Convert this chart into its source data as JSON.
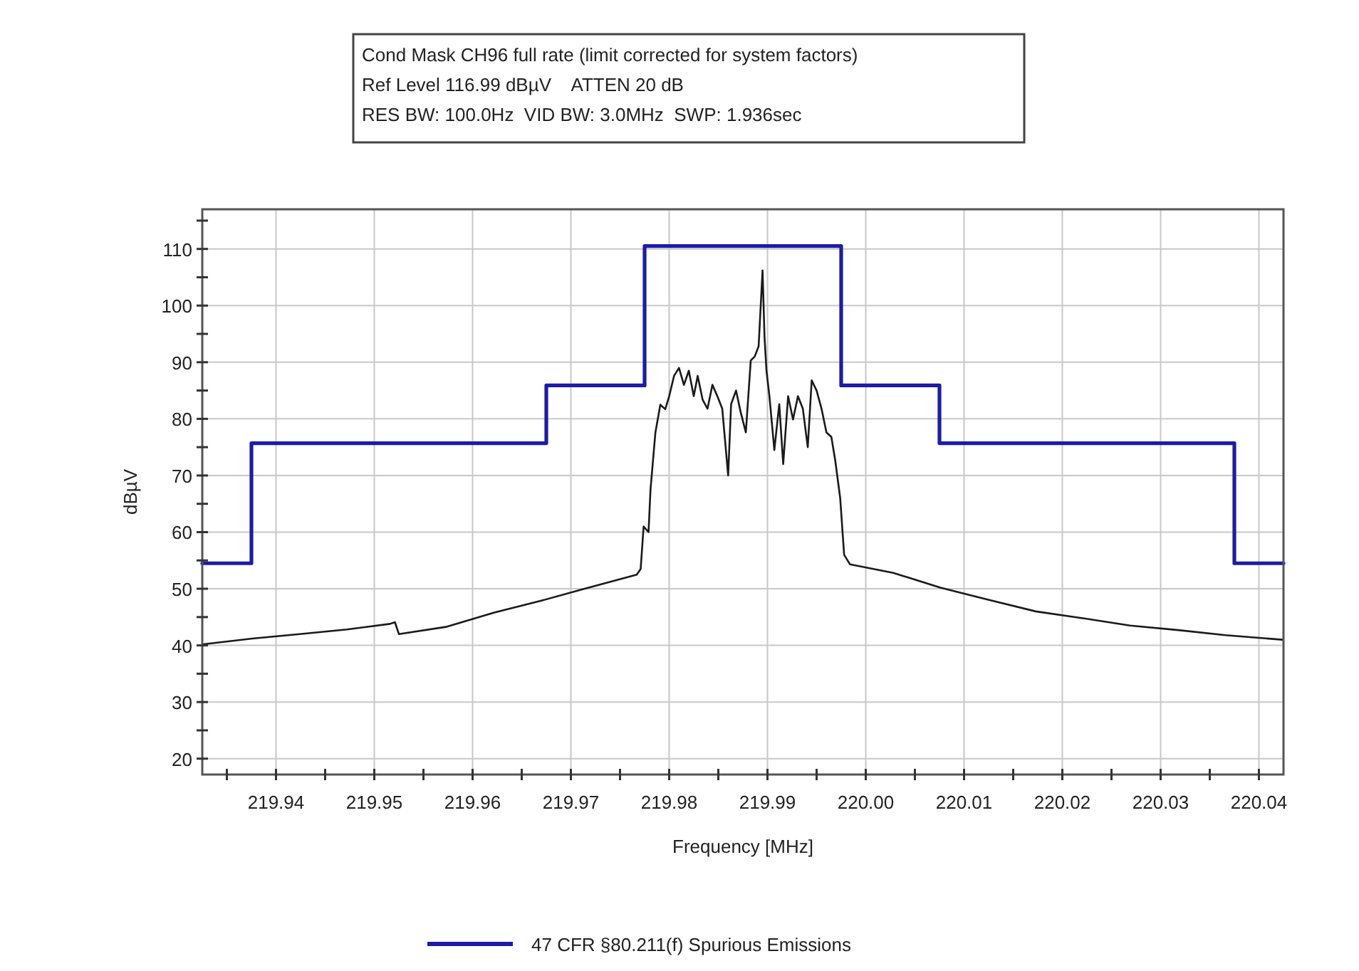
{
  "chart_data": {
    "type": "line",
    "title": "Cond Mask CH96 full rate (limit corrected for system factors)",
    "annotations": [
      "Ref Level 116.99 dBµV    ATTEN 20 dB",
      "RES BW: 100.0Hz  VID BW: 3.0MHz  SWP: 1.936sec"
    ],
    "xlabel": "Frequency [MHz]",
    "ylabel": "dBµV",
    "xlim": [
      219.9325,
      220.0425
    ],
    "xticks": [
      {
        "value": 219.935,
        "label": null
      },
      219.94,
      {
        "value": 219.945,
        "label": null
      },
      219.95,
      {
        "value": 219.955,
        "label": null
      },
      219.96,
      {
        "value": 219.965,
        "label": null
      },
      219.97,
      {
        "value": 219.975,
        "label": null
      },
      219.98,
      {
        "value": 219.985,
        "label": null
      },
      219.99,
      {
        "value": 219.995,
        "label": null
      },
      {
        "value": 220,
        "label": "220.00"
      },
      {
        "value": 220.005,
        "label": null
      },
      220.01,
      {
        "value": 220.015,
        "label": null
      },
      220.02,
      {
        "value": 220.025,
        "label": null
      },
      220.03,
      {
        "value": 220.035,
        "label": null
      },
      220.04
    ],
    "ylim": [
      17.2,
      117
    ],
    "yticks": [
      20,
      {
        "value": 25,
        "label": null
      },
      30,
      {
        "value": 35,
        "label": null
      },
      40,
      {
        "value": 45,
        "label": null
      },
      50,
      {
        "value": 55,
        "label": null
      },
      60,
      {
        "value": 65,
        "label": null
      },
      70,
      {
        "value": 75,
        "label": null
      },
      80,
      {
        "value": 85,
        "label": null
      },
      90,
      {
        "value": 95,
        "label": null
      },
      100,
      {
        "value": 105,
        "label": null
      },
      110,
      {
        "value": 115,
        "label": null
      }
    ],
    "grid": true,
    "legend": "bottom",
    "line_style": "solid",
    "marker": "none",
    "series": [
      {
        "color": "#1a1a1a",
        "x": [
          219.9326,
          219.9376,
          219.9424,
          219.9472,
          219.9516,
          219.9521,
          219.9525,
          219.9574,
          219.9622,
          219.967,
          219.9714,
          219.9767,
          219.9771,
          219.9774,
          219.9779,
          219.9781,
          219.9786,
          219.9791,
          219.9796,
          219.98,
          219.9805,
          219.981,
          219.9815,
          219.982,
          219.9825,
          219.9829,
          219.9834,
          219.9839,
          219.9844,
          219.9849,
          219.9854,
          219.986,
          219.9863,
          219.9868,
          219.9873,
          219.9878,
          219.9883,
          219.9887,
          219.9891,
          219.9895,
          219.9897,
          219.9899,
          219.9902,
          219.9907,
          219.9912,
          219.9916,
          219.9921,
          219.9926,
          219.9931,
          219.9936,
          219.9941,
          219.9945,
          219.995,
          219.9955,
          219.996,
          219.9965,
          219.9969,
          219.9974,
          219.9978,
          219.9984,
          220.0028,
          220.0076,
          220.0124,
          220.0173,
          220.0221,
          220.0269,
          220.0318,
          220.0366,
          220.0424
        ],
        "values": [
          40.2,
          41.2,
          42,
          42.8,
          43.8,
          44.1,
          42,
          43.3,
          45.8,
          47.9,
          50,
          52.5,
          53.5,
          61,
          60,
          67.5,
          77.6,
          82.5,
          81.7,
          84,
          87.6,
          89,
          86,
          88.5,
          84,
          87.6,
          83.4,
          81.8,
          86,
          84,
          81.8,
          70,
          82.6,
          85,
          81,
          77.6,
          90.3,
          91,
          92.8,
          106.2,
          94.5,
          88.5,
          84,
          74.5,
          82.6,
          72,
          84,
          79.9,
          84,
          81.8,
          75,
          86.8,
          85,
          81.8,
          77.6,
          76.8,
          72.6,
          66,
          56,
          54.3,
          52.8,
          50.2,
          48.1,
          46,
          44.8,
          43.5,
          42.7,
          41.8,
          41
        ]
      },
      {
        "type": "step",
        "name": "47 CFR §80.211(f) Spurious Emissions",
        "color": "#1c1ca6",
        "x": [
          219.9325,
          219.9375,
          219.9675,
          219.9775,
          219.9975,
          220.0075,
          220.0375,
          220.0425
        ],
        "values": [
          54.5,
          75.7,
          85.9,
          110.5,
          85.9,
          75.7,
          54.5,
          54.5
        ]
      }
    ]
  }
}
